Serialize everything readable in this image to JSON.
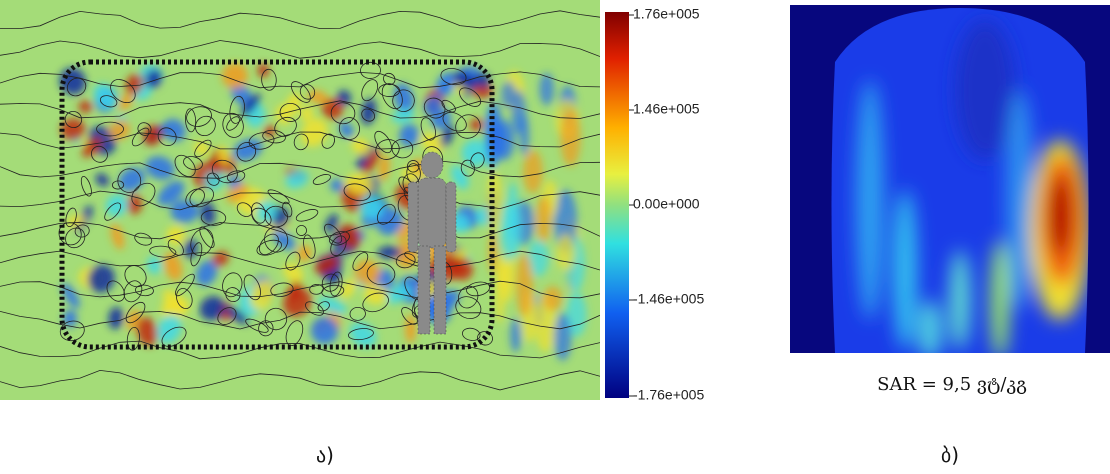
{
  "figure_a": {
    "colorbar": {
      "labels": [
        "1.76e+005",
        "1.46e+005",
        "0.00e+000",
        "-1.46e+005",
        "-1.76e+005"
      ]
    },
    "caption": "ა)"
  },
  "figure_b": {
    "annotation": "SAR = 9,5 ვტ/კგ",
    "caption": "ბ)"
  }
}
